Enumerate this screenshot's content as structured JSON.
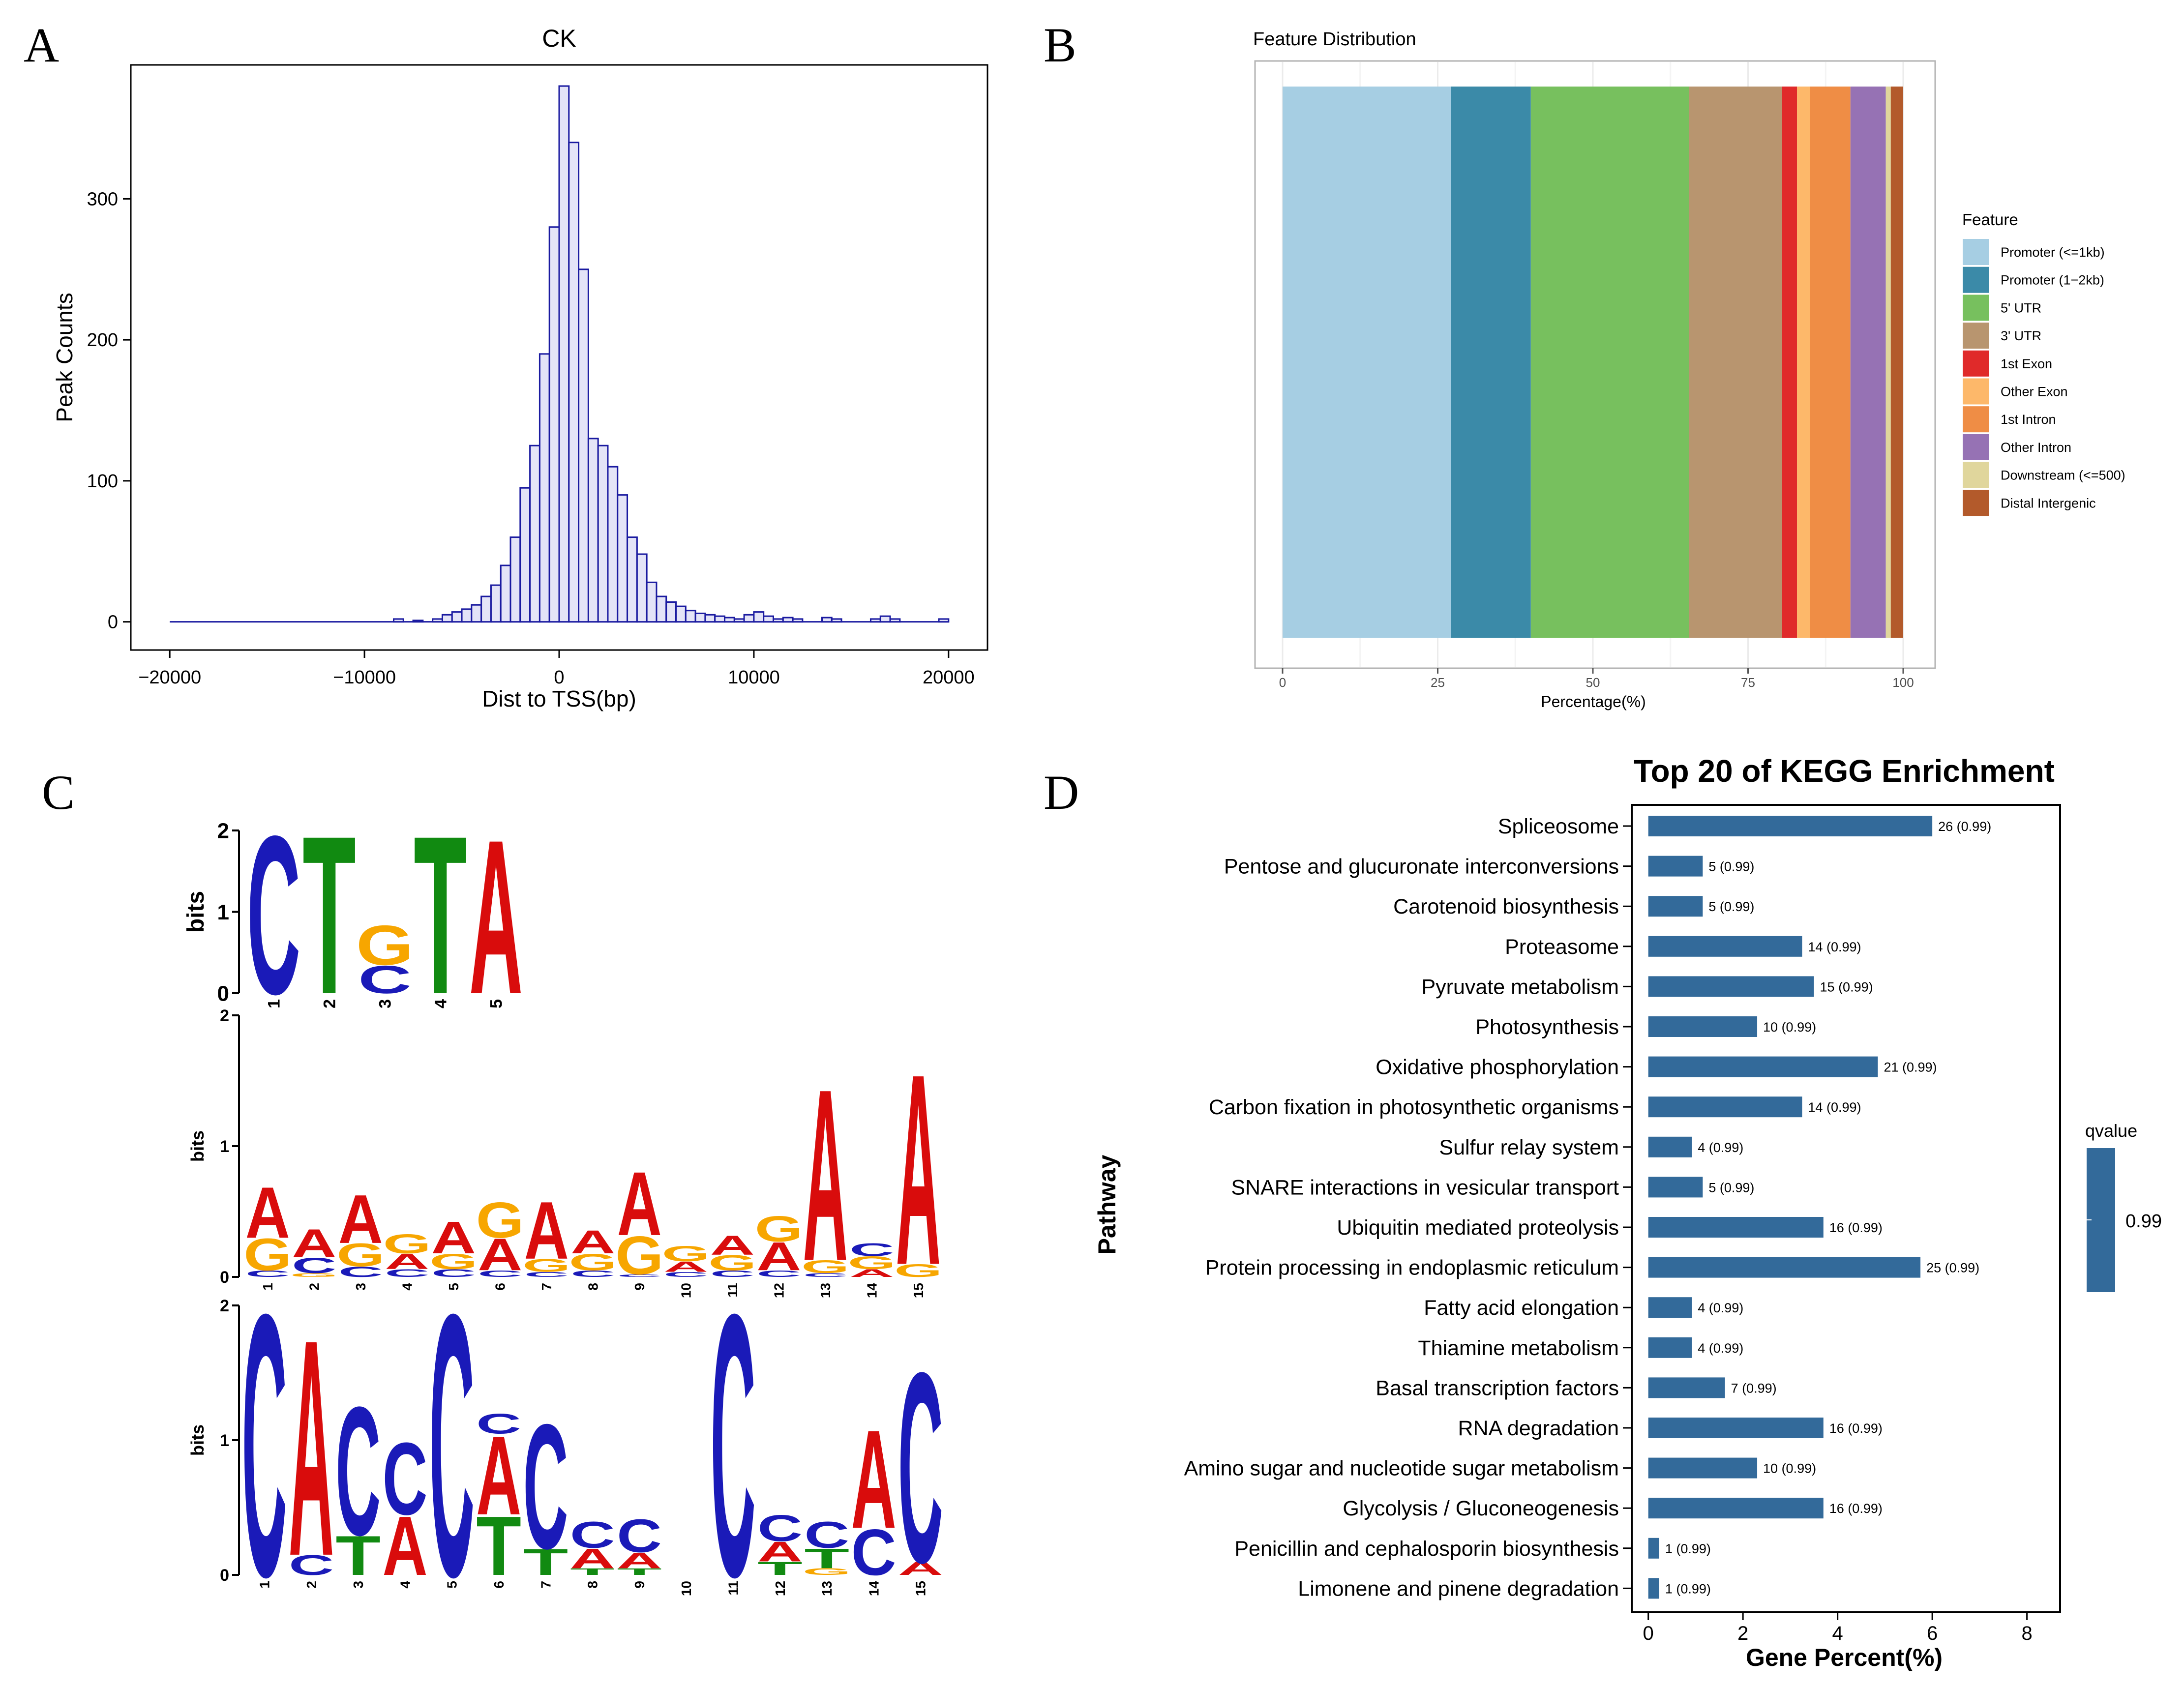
{
  "panels": {
    "A": {
      "label": "A"
    },
    "B": {
      "label": "B"
    },
    "C": {
      "label": "C"
    },
    "D": {
      "label": "D"
    }
  },
  "chart_data": [
    {
      "id": "A",
      "type": "bar",
      "title": "CK",
      "xlabel": "Dist to TSS(bp)",
      "ylabel": "Peak Counts",
      "xlim": [
        -22000,
        22000
      ],
      "ylim": [
        -20,
        395
      ],
      "xticks": [
        -20000,
        -10000,
        0,
        10000,
        20000
      ],
      "xtick_labels": [
        "−20000",
        "−10000",
        "0",
        "10000",
        "20000"
      ],
      "yticks": [
        0,
        100,
        200,
        300
      ],
      "ytick_labels": [
        "0",
        "100",
        "200",
        "300"
      ],
      "bins": [
        -8500,
        -8000,
        -7500,
        -7000,
        -6500,
        -6000,
        -5500,
        -5000,
        -4500,
        -4000,
        -3500,
        -3000,
        -2500,
        -2000,
        -1500,
        -1000,
        -500,
        0,
        500,
        1000,
        1500,
        2000,
        2500,
        3000,
        3500,
        4000,
        4500,
        5000,
        5500,
        6000,
        6500,
        7000,
        7500,
        8000,
        8500,
        9000,
        9500,
        10000,
        10500,
        11000,
        11500,
        12000,
        13500,
        14000,
        16000,
        16500,
        17000,
        19500
      ],
      "bin_width": 500,
      "counts": [
        2,
        0,
        1,
        0,
        2,
        5,
        7,
        9,
        12,
        18,
        26,
        40,
        60,
        95,
        125,
        190,
        280,
        380,
        340,
        250,
        130,
        125,
        110,
        90,
        60,
        48,
        28,
        18,
        14,
        11,
        8,
        6,
        5,
        4,
        3,
        2,
        5,
        7,
        4,
        2,
        3,
        2,
        3,
        2,
        2,
        4,
        2,
        2
      ],
      "baseline_range": [
        -20000,
        20000
      ]
    },
    {
      "id": "B",
      "type": "bar",
      "title": "Feature Distribution",
      "xlabel": "Percentage(%)",
      "ylabel": "",
      "xlim": [
        0,
        100
      ],
      "xticks": [
        0,
        25,
        50,
        75,
        100
      ],
      "stacked": true,
      "legend_title": "Feature",
      "legend_position": "right",
      "series": [
        {
          "name": "Promoter (<=1kb)",
          "value": 27.1,
          "color": "#a6cee3"
        },
        {
          "name": "Promoter (1−2kb)",
          "value": 12.9,
          "color": "#3b8aa8"
        },
        {
          "name": "5' UTR",
          "value": 25.5,
          "color": "#77c05e"
        },
        {
          "name": "3' UTR",
          "value": 15.0,
          "color": "#b8956f"
        },
        {
          "name": "1st Exon",
          "value": 2.4,
          "color": "#e02a2a"
        },
        {
          "name": "Other Exon",
          "value": 2.1,
          "color": "#fdb86a"
        },
        {
          "name": "1st Intron",
          "value": 6.5,
          "color": "#ef8d45"
        },
        {
          "name": "Other Intron",
          "value": 5.7,
          "color": "#9672b4"
        },
        {
          "name": "Downstream (<=500)",
          "value": 0.8,
          "color": "#e0d69c"
        },
        {
          "name": "Distal Intergenic",
          "value": 2.0,
          "color": "#b35a2b"
        }
      ]
    },
    {
      "id": "C",
      "type": "sequence_logo",
      "ylabel": "bits",
      "colors": {
        "A": "#d90c0c",
        "C": "#1a1ab8",
        "G": "#f7a600",
        "T": "#118a11"
      },
      "motifs": [
        {
          "ylim": [
            0,
            2
          ],
          "yticks": [
            "0",
            "1",
            "2"
          ],
          "positions": [
            {
              "pos": "1",
              "letters": [
                [
                  "C",
                  2.0
                ]
              ]
            },
            {
              "pos": "2",
              "letters": [
                [
                  "T",
                  2.0
                ]
              ]
            },
            {
              "pos": "3",
              "letters": [
                [
                  "C",
                  0.35
                ],
                [
                  "G",
                  0.5
                ]
              ]
            },
            {
              "pos": "4",
              "letters": [
                [
                  "T",
                  2.0
                ]
              ]
            },
            {
              "pos": "5",
              "letters": [
                [
                  "A",
                  1.95
                ]
              ]
            }
          ]
        },
        {
          "ylim": [
            0,
            2
          ],
          "yticks": [
            "0",
            "1",
            "2"
          ],
          "positions": [
            {
              "pos": "1",
              "letters": [
                [
                  "C",
                  0.05
                ],
                [
                  "G",
                  0.25
                ],
                [
                  "A",
                  0.4
                ]
              ]
            },
            {
              "pos": "2",
              "letters": [
                [
                  "G",
                  0.03
                ],
                [
                  "C",
                  0.12
                ],
                [
                  "A",
                  0.22
                ]
              ]
            },
            {
              "pos": "3",
              "letters": [
                [
                  "C",
                  0.08
                ],
                [
                  "G",
                  0.18
                ],
                [
                  "A",
                  0.38
                ]
              ]
            },
            {
              "pos": "4",
              "letters": [
                [
                  "C",
                  0.06
                ],
                [
                  "A",
                  0.12
                ],
                [
                  "G",
                  0.15
                ]
              ]
            },
            {
              "pos": "5",
              "letters": [
                [
                  "C",
                  0.06
                ],
                [
                  "G",
                  0.12
                ],
                [
                  "A",
                  0.25
                ]
              ]
            },
            {
              "pos": "6",
              "letters": [
                [
                  "C",
                  0.05
                ],
                [
                  "A",
                  0.25
                ],
                [
                  "G",
                  0.28
                ]
              ]
            },
            {
              "pos": "7",
              "letters": [
                [
                  "C",
                  0.04
                ],
                [
                  "G",
                  0.1
                ],
                [
                  "A",
                  0.45
                ]
              ]
            },
            {
              "pos": "8",
              "letters": [
                [
                  "C",
                  0.05
                ],
                [
                  "G",
                  0.13
                ],
                [
                  "A",
                  0.18
                ]
              ]
            },
            {
              "pos": "9",
              "letters": [
                [
                  "C",
                  0.02
                ],
                [
                  "G",
                  0.3
                ],
                [
                  "A",
                  0.5
                ]
              ]
            },
            {
              "pos": "10",
              "letters": [
                [
                  "C",
                  0.04
                ],
                [
                  "A",
                  0.08
                ],
                [
                  "G",
                  0.12
                ]
              ]
            },
            {
              "pos": "11",
              "letters": [
                [
                  "C",
                  0.05
                ],
                [
                  "G",
                  0.12
                ],
                [
                  "A",
                  0.15
                ]
              ]
            },
            {
              "pos": "12",
              "letters": [
                [
                  "C",
                  0.05
                ],
                [
                  "A",
                  0.22
                ],
                [
                  "G",
                  0.2
                ]
              ]
            },
            {
              "pos": "13",
              "letters": [
                [
                  "C",
                  0.03
                ],
                [
                  "G",
                  0.1
                ],
                [
                  "A",
                  1.35
                ]
              ]
            },
            {
              "pos": "14",
              "letters": [
                [
                  "A",
                  0.06
                ],
                [
                  "G",
                  0.1
                ],
                [
                  "C",
                  0.1
                ]
              ]
            },
            {
              "pos": "15",
              "letters": [
                [
                  "G",
                  0.1
                ],
                [
                  "A",
                  1.5
                ]
              ]
            }
          ]
        },
        {
          "ylim": [
            0,
            2
          ],
          "yticks": [
            "0",
            "1",
            "2"
          ],
          "positions": [
            {
              "pos": "1",
              "letters": [
                [
                  "C",
                  2.0
                ]
              ]
            },
            {
              "pos": "2",
              "letters": [
                [
                  "C",
                  0.15
                ],
                [
                  "A",
                  1.65
                ]
              ]
            },
            {
              "pos": "3",
              "letters": [
                [
                  "T",
                  0.3
                ],
                [
                  "C",
                  0.98
                ]
              ]
            },
            {
              "pos": "4",
              "letters": [
                [
                  "A",
                  0.45
                ],
                [
                  "C",
                  0.55
                ]
              ]
            },
            {
              "pos": "5",
              "letters": [
                [
                  "C",
                  2.0
                ]
              ]
            },
            {
              "pos": "6",
              "letters": [
                [
                  "T",
                  0.45
                ],
                [
                  "A",
                  0.6
                ],
                [
                  "C",
                  0.15
                ]
              ]
            },
            {
              "pos": "7",
              "letters": [
                [
                  "T",
                  0.2
                ],
                [
                  "C",
                  0.95
                ]
              ]
            },
            {
              "pos": "8",
              "letters": [
                [
                  "T",
                  0.05
                ],
                [
                  "A",
                  0.15
                ],
                [
                  "C",
                  0.2
                ]
              ]
            },
            {
              "pos": "9",
              "letters": [
                [
                  "T",
                  0.05
                ],
                [
                  "A",
                  0.12
                ],
                [
                  "C",
                  0.25
                ]
              ]
            },
            {
              "pos": "10",
              "letters": []
            },
            {
              "pos": "11",
              "letters": [
                [
                  "C",
                  2.0
                ]
              ]
            },
            {
              "pos": "12",
              "letters": [
                [
                  "T",
                  0.1
                ],
                [
                  "A",
                  0.15
                ],
                [
                  "C",
                  0.2
                ]
              ]
            },
            {
              "pos": "13",
              "letters": [
                [
                  "G",
                  0.05
                ],
                [
                  "T",
                  0.15
                ],
                [
                  "C",
                  0.2
                ]
              ]
            },
            {
              "pos": "14",
              "letters": [
                [
                  "C",
                  0.35
                ],
                [
                  "A",
                  0.75
                ]
              ]
            },
            {
              "pos": "15",
              "letters": [
                [
                  "A",
                  0.1
                ],
                [
                  "C",
                  1.45
                ]
              ]
            }
          ]
        }
      ]
    },
    {
      "id": "D",
      "type": "bar",
      "orientation": "horizontal",
      "title": "Top 20 of KEGG Enrichment",
      "xlabel": "Gene Percent(%)",
      "ylabel": "Pathway",
      "xlim": [
        -0.35,
        8.7
      ],
      "xticks": [
        0,
        2,
        4,
        6,
        8
      ],
      "bar_color": "#336a9a",
      "legend_title": "qvalue",
      "legend_value": "0.99",
      "categories": [
        "Spliceosome",
        "Pentose and glucuronate interconversions",
        "Carotenoid biosynthesis",
        "Proteasome",
        "Pyruvate metabolism",
        "Photosynthesis",
        "Oxidative phosphorylation",
        "Carbon fixation in photosynthetic organisms",
        "Sulfur relay system",
        "SNARE interactions in vesicular transport",
        "Ubiquitin mediated proteolysis",
        "Protein processing in endoplasmic reticulum",
        "Fatty acid elongation",
        "Thiamine metabolism",
        "Basal transcription factors",
        "RNA degradation",
        "Amino sugar and nucleotide sugar metabolism",
        "Glycolysis / Gluconeogenesis",
        "Penicillin and cephalosporin biosynthesis",
        "Limonene and pinene degradation"
      ],
      "values": [
        6.0,
        1.15,
        1.15,
        3.25,
        3.5,
        2.3,
        4.85,
        3.25,
        0.92,
        1.15,
        3.7,
        5.75,
        0.92,
        0.92,
        1.62,
        3.7,
        2.3,
        3.7,
        0.23,
        0.23
      ],
      "bar_labels": [
        "26 (0.99)",
        "5 (0.99)",
        "5 (0.99)",
        "14 (0.99)",
        "15 (0.99)",
        "10 (0.99)",
        "21 (0.99)",
        "14 (0.99)",
        "4 (0.99)",
        "5 (0.99)",
        "16 (0.99)",
        "25 (0.99)",
        "4 (0.99)",
        "4 (0.99)",
        "7 (0.99)",
        "16 (0.99)",
        "10 (0.99)",
        "16 (0.99)",
        "1 (0.99)",
        "1 (0.99)"
      ]
    }
  ]
}
